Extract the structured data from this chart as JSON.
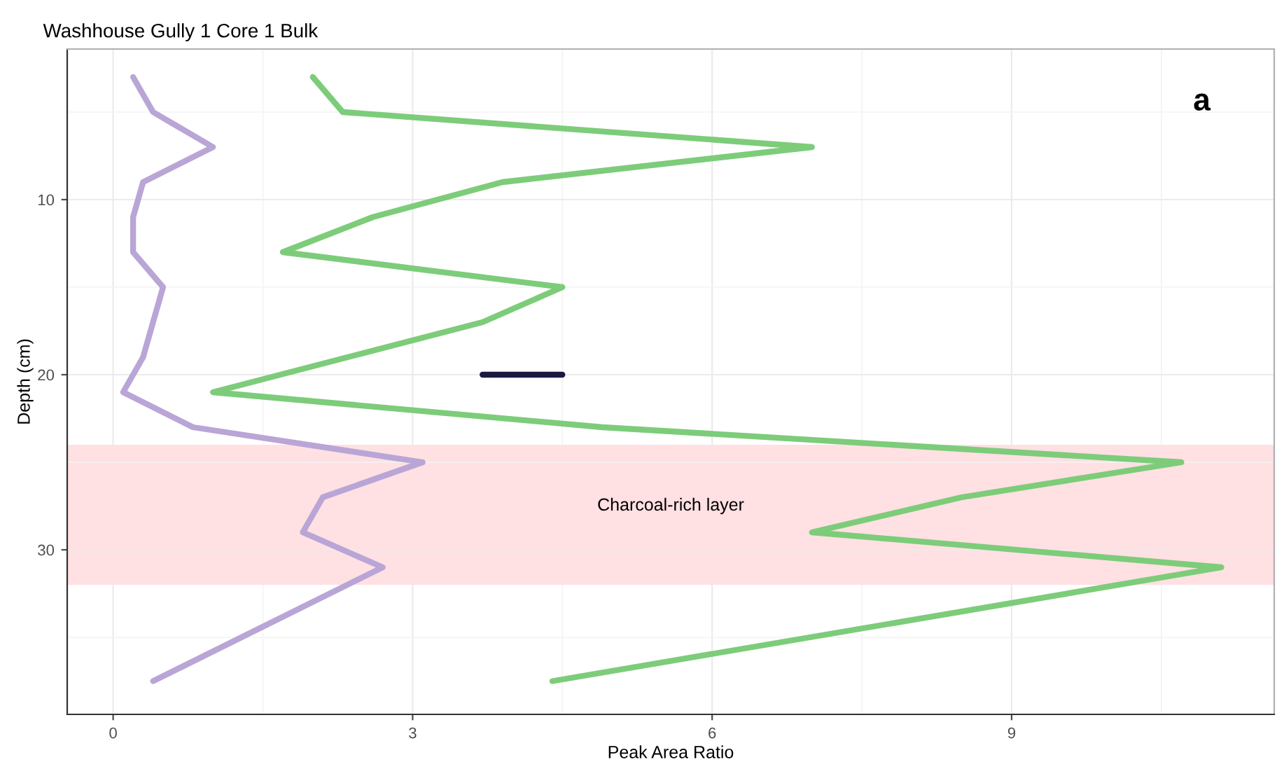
{
  "chart_data": {
    "type": "line",
    "title": "Washhouse Gully 1 Core 1 Bulk",
    "xlabel": "Peak Area Ratio",
    "ylabel": "Depth (cm)",
    "xlim": [
      -0.46,
      11.63
    ],
    "xticks": [
      0,
      3,
      6,
      9
    ],
    "ylim": [
      39.4,
      1.4
    ],
    "yticks": [
      10,
      20,
      30
    ],
    "grid": true,
    "legend": false,
    "series": [
      {
        "color": "#b9a5d6",
        "x": [
          0.2,
          0.4,
          1.0,
          0.3,
          0.2,
          0.2,
          0.5,
          0.3,
          0.1,
          0.8,
          3.1,
          2.1,
          1.9,
          2.7,
          0.4
        ],
        "values": [
          3,
          5,
          7,
          9,
          11,
          13,
          15,
          19,
          21,
          23,
          25,
          27,
          29,
          31,
          37.5
        ]
      },
      {
        "color": "#7dcc7a",
        "x": [
          2.0,
          2.3,
          7.0,
          3.9,
          2.6,
          1.7,
          4.5,
          3.7,
          1.0,
          4.9,
          10.7,
          8.5,
          7.0,
          11.1,
          4.4
        ],
        "values": [
          3,
          5,
          7,
          9,
          11,
          13,
          15,
          17,
          21,
          23,
          25,
          27,
          29,
          31,
          37.5
        ]
      },
      {
        "color": "#1a1a40",
        "x": [
          3.7,
          4.5
        ],
        "values": [
          20,
          20
        ]
      }
    ],
    "bands": [
      {
        "axis": "y",
        "from": 24,
        "to": 32,
        "color": "#ffe0e3",
        "label": "Charcoal-rich layer"
      }
    ],
    "annotations": [
      "a"
    ]
  }
}
